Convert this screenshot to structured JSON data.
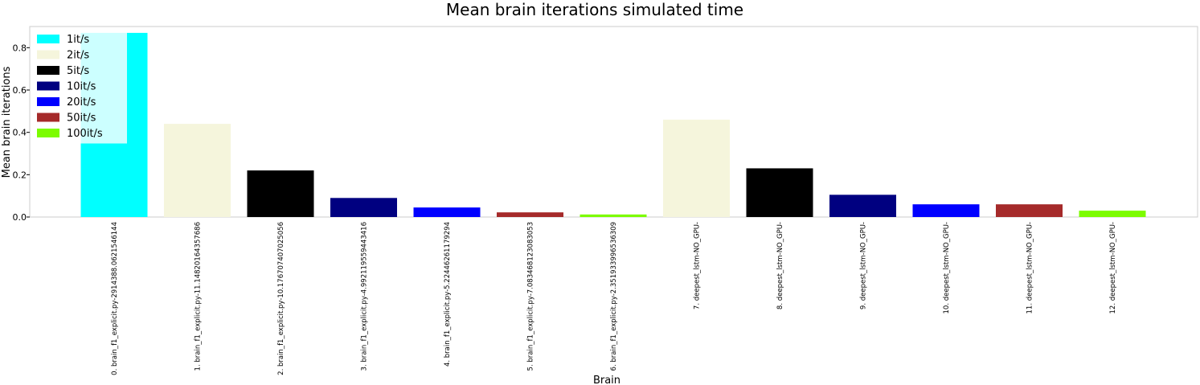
{
  "chart_data": {
    "type": "bar",
    "title": "Mean brain iterations simulated time",
    "xlabel": "Brain",
    "ylabel": "Mean brain iterations",
    "ylim": [
      0,
      0.9
    ],
    "yticks": [
      "0.0",
      "0.2",
      "0.4",
      "0.6",
      "0.8"
    ],
    "ytick_values": [
      0,
      0.2,
      0.4,
      0.6,
      0.8
    ],
    "grid": false,
    "legend_position": "top-left",
    "categories": [
      "0. brain_f1_explicit.py-2914388.0621546144",
      "1. brain_f1_explicit.py-11.14820164357686",
      "2. brain_f1_explicit.py-10.176707407025056",
      "3. brain_f1_explicit.py-4.992119559443416",
      "4. brain_f1_explicit.py-5.22446261179294",
      "5. brain_f1_explicit.py-7.083468123083053",
      "6. brain_f1_explicit.py-2.351933996536309",
      "7. deepest_lstm-NO_GPU-",
      "8. deepest_lstm-NO_GPU-",
      "9. deepest_lstm-NO_GPU-",
      "10. deepest_lstm-NO_GPU-",
      "11. deepest_lstm-NO_GPU-",
      "12. deepest_lstm-NO_GPU-"
    ],
    "values": [
      0.87,
      0.44,
      0.22,
      0.09,
      0.045,
      0.022,
      0.012,
      0.46,
      0.23,
      0.105,
      0.06,
      0.06,
      0.03
    ],
    "bar_colors": [
      "#00ffff",
      "#f5f5dc",
      "#000000",
      "#000080",
      "#0000ff",
      "#a52a2a",
      "#7cfc00",
      "#f5f5dc",
      "#000000",
      "#000080",
      "#0000ff",
      "#a52a2a",
      "#7cfc00"
    ],
    "legend": [
      {
        "label": "1it/s",
        "color": "#00ffff"
      },
      {
        "label": "2it/s",
        "color": "#f5f5dc"
      },
      {
        "label": "5it/s",
        "color": "#000000"
      },
      {
        "label": "10it/s",
        "color": "#000080"
      },
      {
        "label": "20it/s",
        "color": "#0000ff"
      },
      {
        "label": "50it/s",
        "color": "#a52a2a"
      },
      {
        "label": "100it/s",
        "color": "#7cfc00"
      }
    ]
  }
}
